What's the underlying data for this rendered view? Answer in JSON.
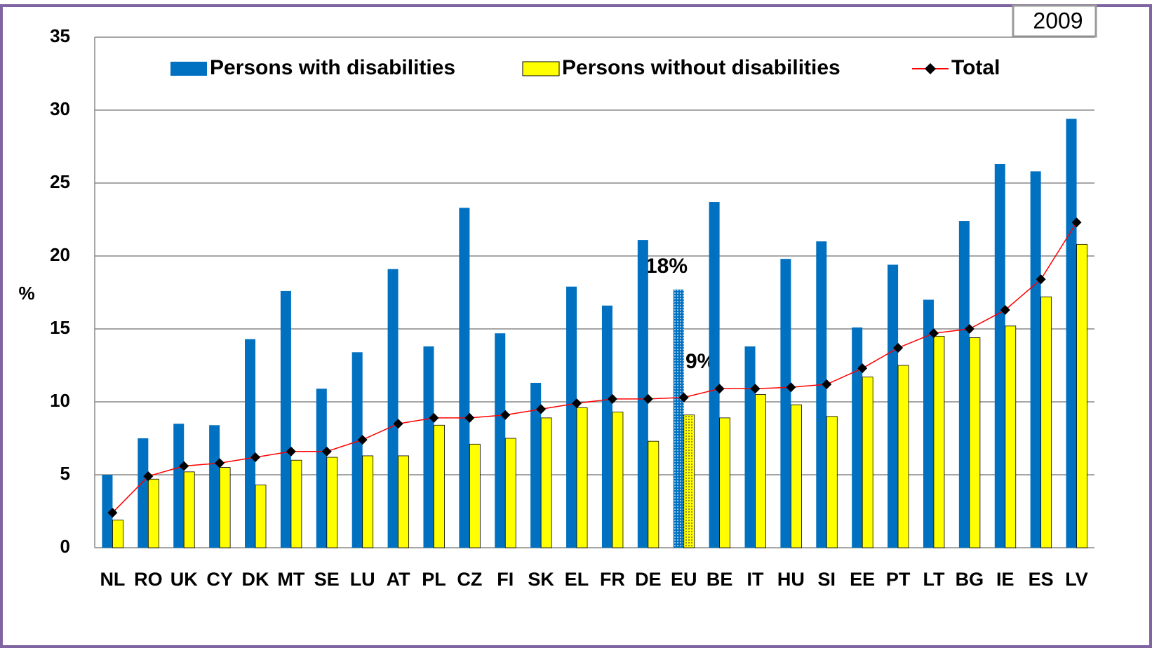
{
  "chart_data": {
    "type": "bar",
    "year_label": "2009",
    "y_axis_label": "%",
    "categories": [
      "NL",
      "RO",
      "UK",
      "CY",
      "DK",
      "MT",
      "SE",
      "LU",
      "AT",
      "PL",
      "CZ",
      "FI",
      "SK",
      "EL",
      "FR",
      "DE",
      "EU",
      "BE",
      "IT",
      "HU",
      "SI",
      "EE",
      "PT",
      "LT",
      "BG",
      "IE",
      "ES",
      "LV"
    ],
    "series": [
      {
        "name": "Persons with disabilities",
        "color": "#0070c0",
        "values": [
          5.0,
          7.5,
          8.5,
          8.4,
          14.3,
          17.6,
          10.9,
          13.4,
          19.1,
          13.8,
          23.3,
          14.7,
          11.3,
          17.9,
          16.6,
          21.1,
          17.7,
          23.7,
          13.8,
          19.8,
          21.0,
          15.1,
          19.4,
          17.0,
          22.4,
          26.3,
          25.8,
          29.4
        ]
      },
      {
        "name": "Persons without disabilities",
        "color": "#ffff00",
        "values": [
          1.9,
          4.7,
          5.2,
          5.5,
          4.3,
          6.0,
          6.2,
          6.3,
          6.3,
          8.4,
          7.1,
          7.5,
          8.9,
          9.6,
          9.3,
          7.3,
          9.1,
          8.9,
          10.5,
          9.8,
          9.0,
          11.7,
          12.5,
          14.5,
          14.4,
          15.2,
          17.2,
          20.8
        ]
      },
      {
        "name": "Total",
        "type": "line",
        "color": "#ff0000",
        "marker_color": "#000000",
        "values": [
          2.4,
          4.9,
          5.6,
          5.8,
          6.2,
          6.6,
          6.6,
          7.4,
          8.5,
          8.9,
          8.9,
          9.1,
          9.5,
          9.9,
          10.2,
          10.2,
          10.3,
          10.9,
          10.9,
          11.0,
          11.2,
          12.3,
          13.7,
          14.7,
          15.0,
          16.3,
          18.4,
          22.3
        ]
      }
    ],
    "annotations": [
      "18%",
      "9%"
    ],
    "ylim": [
      0,
      35
    ],
    "yticks": [
      0,
      5,
      10,
      15,
      20,
      25,
      30,
      35
    ],
    "grid": true
  }
}
